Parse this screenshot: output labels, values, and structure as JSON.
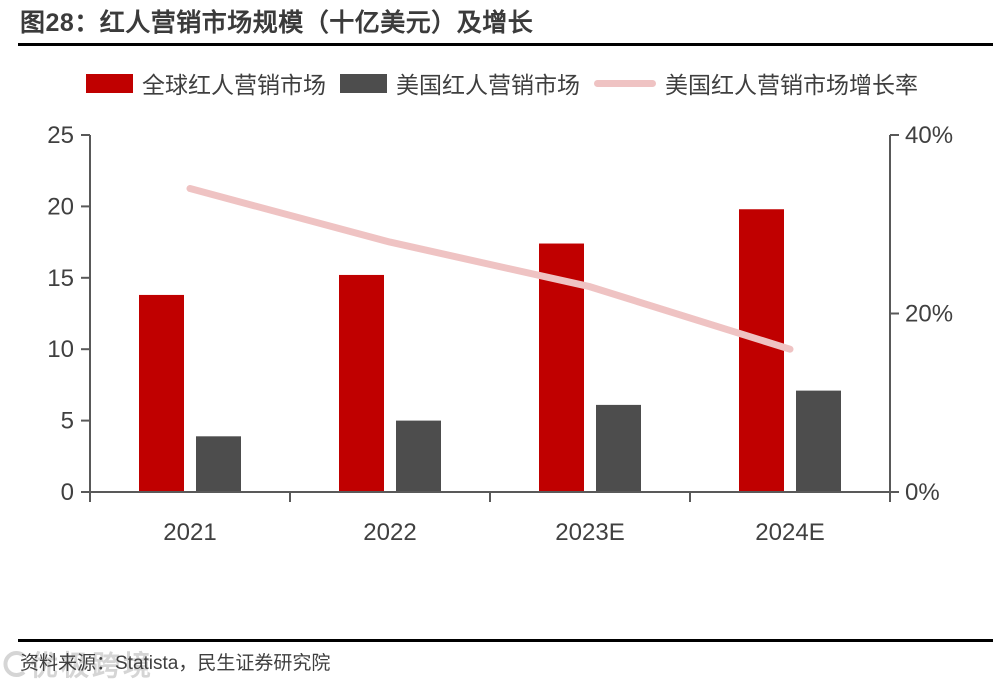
{
  "title": "图28：红人营销市场规模（十亿美元）及增长",
  "legend": [
    {
      "label": "全球红人营销市场",
      "type": "bar",
      "color": "#c00000"
    },
    {
      "label": "美国红人营销市场",
      "type": "bar",
      "color": "#4d4d4d"
    },
    {
      "label": "美国红人营销市场增长率",
      "type": "line",
      "color": "#efc3c3"
    }
  ],
  "chart_data": {
    "type": "bar+line",
    "title": "红人营销市场规模（十亿美元）及增长",
    "categories": [
      "2021",
      "2022",
      "2023E",
      "2024E"
    ],
    "series": [
      {
        "name": "全球红人营销市场",
        "type": "bar",
        "axis": "left",
        "color": "#c00000",
        "values": [
          13.8,
          15.2,
          17.4,
          19.8
        ]
      },
      {
        "name": "美国红人营销市场",
        "type": "bar",
        "axis": "left",
        "color": "#4d4d4d",
        "values": [
          3.9,
          5.0,
          6.1,
          7.1
        ]
      },
      {
        "name": "美国红人营销市场增长率",
        "type": "line",
        "axis": "right",
        "color": "#efc3c3",
        "unit": "%",
        "values": [
          34,
          28,
          23,
          16
        ]
      }
    ],
    "left_axis": {
      "min": 0,
      "max": 25,
      "ticks": [
        0,
        5,
        10,
        15,
        20,
        25
      ]
    },
    "right_axis": {
      "min": 0,
      "max": 40,
      "tick_values": [
        0,
        20,
        40
      ],
      "tick_labels": [
        "0%",
        "20%",
        "40%"
      ]
    },
    "grid": false,
    "legend_position": "top",
    "axis_color": "#595959",
    "tick_text_color": "#404040"
  },
  "footer": {
    "source_label": "资料来源：Statista，民生证券研究院"
  },
  "watermark": {
    "text": "优极跨境"
  }
}
